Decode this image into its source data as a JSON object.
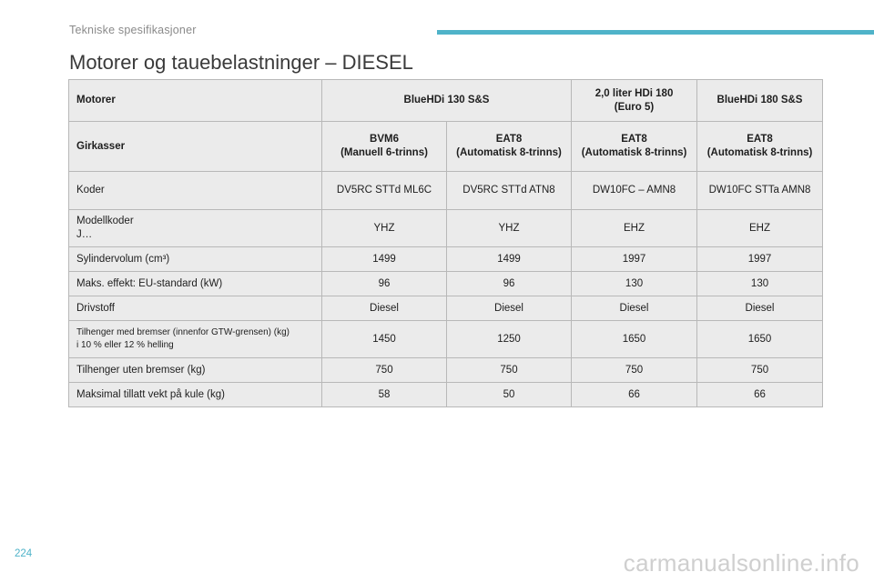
{
  "header": {
    "section": "Tekniske spesifikasjoner",
    "accent_color": "#4fb3c9"
  },
  "title": "Motorer og tauebelastninger – DIESEL",
  "table": {
    "engine_row": {
      "label": "Motorer",
      "col1": "BlueHDi 130 S&S",
      "col3_line1": "2,0 liter HDi 180",
      "col3_line2": "(Euro 5)",
      "col4": "BlueHDi 180 S&S"
    },
    "gearbox_row": {
      "label": "Girkasser",
      "cells": [
        {
          "name": "BVM6",
          "desc": "(Manuell 6-trinns)"
        },
        {
          "name": "EAT8",
          "desc": "(Automatisk 8-trinns)"
        },
        {
          "name": "EAT8",
          "desc": "(Automatisk 8-trinns)"
        },
        {
          "name": "EAT8",
          "desc": "(Automatisk 8-trinns)"
        }
      ]
    },
    "codes_row": {
      "label": "Koder",
      "values": [
        "DV5RC STTd ML6C",
        "DV5RC STTd ATN8",
        "DW10FC – AMN8",
        "DW10FC STTa AMN8"
      ]
    },
    "model_codes_row": {
      "label_line1": "Modellkoder",
      "label_line2": "J…",
      "values": [
        "YHZ",
        "YHZ",
        "EHZ",
        "EHZ"
      ]
    },
    "displacement_row": {
      "label": "Sylindervolum (cm³)",
      "values": [
        "1499",
        "1499",
        "1997",
        "1997"
      ]
    },
    "power_row": {
      "label": "Maks. effekt: EU-standard (kW)",
      "values": [
        "96",
        "96",
        "130",
        "130"
      ]
    },
    "fuel_row": {
      "label": "Drivstoff",
      "values": [
        "Diesel",
        "Diesel",
        "Diesel",
        "Diesel"
      ]
    },
    "braked_trailer_row": {
      "label_line1": "Tilhenger med bremser (innenfor GTW-grensen) (kg)",
      "label_line2": "i 10 % eller 12 % helling",
      "values": [
        "1450",
        "1250",
        "1650",
        "1650"
      ]
    },
    "unbraked_trailer_row": {
      "label": "Tilhenger uten bremser (kg)",
      "values": [
        "750",
        "750",
        "750",
        "750"
      ]
    },
    "ball_weight_row": {
      "label": "Maksimal tillatt vekt på kule (kg)",
      "values": [
        "58",
        "50",
        "66",
        "66"
      ]
    }
  },
  "footer": {
    "page_number": "224",
    "watermark": "carmanualsonline.info"
  }
}
